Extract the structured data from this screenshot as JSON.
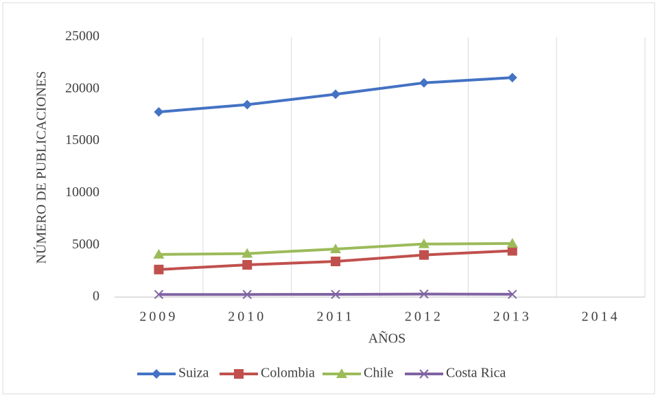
{
  "chart_data": {
    "type": "line",
    "x_label": "AÑOS",
    "y_label": "NÚMERO DE PUBLICACIONES",
    "categories": [
      "2009",
      "2010",
      "2011",
      "2012",
      "2013",
      "2014"
    ],
    "series": [
      {
        "name": "Suiza",
        "color": "#4472c4",
        "marker": "diamond",
        "values": [
          17800,
          18500,
          19500,
          20600,
          21100,
          null
        ]
      },
      {
        "name": "Colombia",
        "color": "#c0504d",
        "marker": "square",
        "values": [
          2650,
          3100,
          3430,
          4050,
          4450,
          null
        ]
      },
      {
        "name": "Chile",
        "color": "#9bbb59",
        "marker": "triangle",
        "values": [
          4100,
          4180,
          4620,
          5100,
          5150,
          null
        ]
      },
      {
        "name": "Costa Rica",
        "color": "#8064a2",
        "marker": "x",
        "values": [
          250,
          250,
          260,
          290,
          270,
          null
        ]
      }
    ],
    "ylim": [
      0,
      25000
    ],
    "yticks": [
      0,
      5000,
      10000,
      15000,
      20000,
      25000
    ],
    "grid": "vertical",
    "legend": "bottom"
  }
}
